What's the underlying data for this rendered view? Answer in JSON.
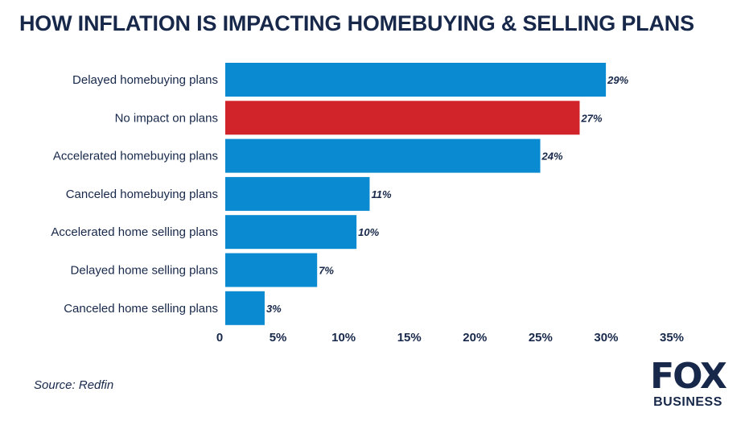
{
  "title": "HOW INFLATION IS IMPACTING HOMEBUYING & SELLING PLANS",
  "source": "Source: Redfin",
  "logo": {
    "line1": "FOX",
    "line2": "BUSINESS"
  },
  "colors": {
    "bar": "#0a8ad0",
    "highlight": "#d1232a",
    "text": "#17284a"
  },
  "chart_data": {
    "type": "bar",
    "orientation": "horizontal",
    "title": "HOW INFLATION IS IMPACTING HOMEBUYING & SELLING PLANS",
    "categories": [
      "Delayed homebuying plans",
      "No impact on plans",
      "Accelerated homebuying plans",
      "Canceled homebuying plans",
      "Accelerated home selling plans",
      "Delayed home selling plans",
      "Canceled home selling plans"
    ],
    "values": [
      29,
      27,
      24,
      11,
      10,
      7,
      3
    ],
    "value_labels": [
      "29%",
      "27%",
      "24%",
      "11%",
      "10%",
      "7%",
      "3%"
    ],
    "highlight_index": 1,
    "xlim": [
      0,
      35
    ],
    "xticks": [
      0,
      5,
      10,
      15,
      20,
      25,
      30,
      35
    ],
    "xtick_labels": [
      "0",
      "5%",
      "10%",
      "15%",
      "20%",
      "25%",
      "30%",
      "35%"
    ],
    "xlabel": "",
    "ylabel": "",
    "grid": false,
    "legend": false
  }
}
